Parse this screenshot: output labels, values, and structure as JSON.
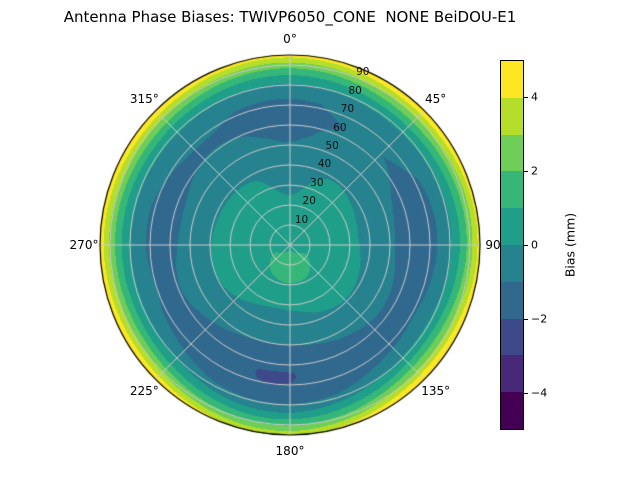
{
  "chart_data": {
    "type": "polar_contour",
    "title": "Antenna Phase Biases: TWIVP6050_CONE  NONE BeiDOU-E1",
    "colorbar": {
      "label": "Bias (mm)",
      "units": "mm",
      "vmin": -5,
      "vmax": 5,
      "ticks": [
        {
          "value": 4,
          "label": "4"
        },
        {
          "value": 2,
          "label": "2"
        },
        {
          "value": 0,
          "label": "0"
        },
        {
          "value": -2,
          "label": "−2"
        },
        {
          "value": -4,
          "label": "−4"
        }
      ],
      "colors": [
        "#440154",
        "#482878",
        "#3e4989",
        "#31688e",
        "#26828e",
        "#1f9e89",
        "#35b779",
        "#6ece58",
        "#b5de2b",
        "#fde725"
      ]
    },
    "angular_axis": {
      "zero_location": "top",
      "direction": "clockwise"
    },
    "angular_ticks": [
      {
        "angle_deg": 0,
        "label": "0°"
      },
      {
        "angle_deg": 45,
        "label": "45°"
      },
      {
        "angle_deg": 90,
        "label": "90°"
      },
      {
        "angle_deg": 135,
        "label": "135°"
      },
      {
        "angle_deg": 180,
        "label": "180°"
      },
      {
        "angle_deg": 225,
        "label": "225°"
      },
      {
        "angle_deg": 270,
        "label": "270°"
      },
      {
        "angle_deg": 315,
        "label": "315°"
      }
    ],
    "radial_axis": {
      "min": 0,
      "max": 95,
      "tick_interval": 10
    },
    "radial_label_angle_deg": 22.5,
    "radial_ticks": [
      {
        "zenith": 10,
        "label": "10"
      },
      {
        "zenith": 20,
        "label": "20"
      },
      {
        "zenith": 30,
        "label": "30"
      },
      {
        "zenith": 40,
        "label": "40"
      },
      {
        "zenith": 50,
        "label": "50"
      },
      {
        "zenith": 60,
        "label": "60"
      },
      {
        "zenith": 70,
        "label": "70"
      },
      {
        "zenith": 80,
        "label": "80"
      },
      {
        "zenith": 90,
        "label": "90"
      }
    ],
    "grid_color": "#cccccc",
    "outline_color": "#000000",
    "field_model": {
      "r_profile": {
        "zen": [
          0,
          8,
          16,
          26,
          36,
          46,
          56,
          64,
          72,
          78,
          84,
          89,
          93,
          95
        ],
        "bias": [
          0.5,
          0.8,
          0.5,
          0.3,
          0.1,
          -0.3,
          -0.8,
          -1.05,
          -0.95,
          -0.4,
          0.9,
          2.4,
          3.9,
          4.8
        ]
      },
      "harmonics": [
        {
          "order": 1,
          "amp": 0.15,
          "phase_deg": 0,
          "power": 1
        },
        {
          "order": 2,
          "amp": 0.25,
          "phase_deg": 200,
          "power": 1
        },
        {
          "order": 3,
          "amp": 0.22,
          "phase_deg": 40,
          "power": 1
        },
        {
          "order": 4,
          "amp": 0.35,
          "phase_deg": 180,
          "power": 3
        }
      ],
      "blobs": [
        {
          "az_deg": 182,
          "zen": 13,
          "amp": 0.9,
          "sigma_zen": 8,
          "sigma_az_deg": 38
        },
        {
          "az_deg": 0,
          "zen": 40,
          "amp": -0.55,
          "sigma_zen": 15,
          "sigma_az_deg": 14
        },
        {
          "az_deg": 150,
          "zen": 66,
          "amp": -0.55,
          "sigma_zen": 11,
          "sigma_az_deg": 26
        },
        {
          "az_deg": 210,
          "zen": 67,
          "amp": -0.45,
          "sigma_zen": 11,
          "sigma_az_deg": 24
        },
        {
          "az_deg": 95,
          "zen": 52,
          "amp": -0.35,
          "sigma_zen": 13,
          "sigma_az_deg": 28
        },
        {
          "az_deg": 278,
          "zen": 58,
          "amp": -0.35,
          "sigma_zen": 12,
          "sigma_az_deg": 26
        }
      ]
    },
    "sample_grid": {
      "azimuth_deg": [
        0,
        45,
        90,
        135,
        180,
        225,
        270,
        315
      ],
      "zenith_deg": [
        0,
        15,
        30,
        45,
        60,
        75,
        90
      ],
      "bias_mm": [
        [
          0.5,
          0.5,
          0.5,
          0.5,
          0.5,
          0.5,
          0.5,
          0.5
        ],
        [
          0.4,
          0.5,
          0.6,
          0.7,
          0.9,
          0.9,
          0.6,
          0.4
        ],
        [
          -0.1,
          0.3,
          0.4,
          0.4,
          0.4,
          0.3,
          0.3,
          0.2
        ],
        [
          -0.7,
          -0.1,
          -0.4,
          -0.4,
          -0.2,
          -0.4,
          -0.5,
          -0.3
        ],
        [
          -1.0,
          -0.7,
          -1.0,
          -1.4,
          -1.0,
          -1.3,
          -0.9,
          -0.9
        ],
        [
          -0.7,
          -0.3,
          -0.7,
          -1.2,
          -0.8,
          -1.1,
          -0.6,
          -0.5
        ],
        [
          2.6,
          3.2,
          2.9,
          3.1,
          2.8,
          3.1,
          3.0,
          2.9
        ]
      ]
    }
  }
}
